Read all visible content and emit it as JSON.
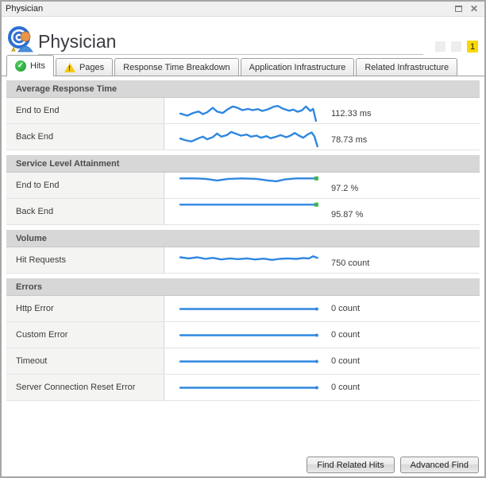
{
  "window": {
    "title": "Physician"
  },
  "titlebar": {
    "maximize_label": "maximize",
    "close_label": "close"
  },
  "header": {
    "title": "Physician",
    "badge_count": "1",
    "badge_color": "#f8d800",
    "status_boxes": 2
  },
  "tabs": [
    {
      "label": "Hits",
      "icon": "check-icon",
      "active": true
    },
    {
      "label": "Pages",
      "icon": "warning-icon",
      "active": false
    },
    {
      "label": "Response Time Breakdown",
      "icon": null,
      "active": false
    },
    {
      "label": "Application Infrastructure",
      "icon": null,
      "active": false
    },
    {
      "label": "Related Infrastructure",
      "icon": null,
      "active": false
    }
  ],
  "colors": {
    "spark_blue": "#2f87e0",
    "marker_green": "#3bb54a"
  },
  "sections": [
    {
      "title": "Average Response Time",
      "rows": [
        {
          "label": "End to End",
          "value": "112.33 ms",
          "value_pos": "low",
          "marker": null,
          "points": [
            [
              0,
              60
            ],
            [
              5,
              68
            ],
            [
              9,
              58
            ],
            [
              13,
              52
            ],
            [
              16,
              62
            ],
            [
              19,
              55
            ],
            [
              23,
              38
            ],
            [
              26,
              52
            ],
            [
              30,
              58
            ],
            [
              34,
              42
            ],
            [
              37,
              33
            ],
            [
              40,
              37
            ],
            [
              44,
              47
            ],
            [
              48,
              42
            ],
            [
              51,
              47
            ],
            [
              55,
              43
            ],
            [
              58,
              50
            ],
            [
              62,
              44
            ],
            [
              66,
              34
            ],
            [
              69,
              31
            ],
            [
              73,
              42
            ],
            [
              77,
              49
            ],
            [
              80,
              45
            ],
            [
              83,
              53
            ],
            [
              86,
              48
            ],
            [
              89,
              33
            ],
            [
              92,
              50
            ],
            [
              94,
              42
            ],
            [
              96,
              88
            ]
          ]
        },
        {
          "label": "Back End",
          "value": "78.73 ms",
          "value_pos": "low",
          "marker": null,
          "points": [
            [
              0,
              55
            ],
            [
              4,
              62
            ],
            [
              8,
              66
            ],
            [
              12,
              56
            ],
            [
              16,
              48
            ],
            [
              19,
              58
            ],
            [
              23,
              50
            ],
            [
              26,
              36
            ],
            [
              29,
              48
            ],
            [
              33,
              42
            ],
            [
              36,
              30
            ],
            [
              39,
              36
            ],
            [
              43,
              44
            ],
            [
              47,
              40
            ],
            [
              50,
              48
            ],
            [
              54,
              44
            ],
            [
              57,
              52
            ],
            [
              61,
              46
            ],
            [
              64,
              54
            ],
            [
              68,
              48
            ],
            [
              71,
              42
            ],
            [
              75,
              50
            ],
            [
              78,
              44
            ],
            [
              81,
              34
            ],
            [
              84,
              44
            ],
            [
              87,
              52
            ],
            [
              90,
              40
            ],
            [
              93,
              32
            ],
            [
              95,
              48
            ],
            [
              97,
              85
            ]
          ]
        }
      ]
    },
    {
      "title": "Service Level Attainment",
      "rows": [
        {
          "label": "End to End",
          "value": "97.2 %",
          "value_pos": "low",
          "marker": "green",
          "points": [
            [
              0,
              22
            ],
            [
              10,
              22
            ],
            [
              18,
              24
            ],
            [
              26,
              30
            ],
            [
              34,
              24
            ],
            [
              44,
              22
            ],
            [
              54,
              24
            ],
            [
              62,
              30
            ],
            [
              68,
              33
            ],
            [
              74,
              26
            ],
            [
              82,
              22
            ],
            [
              96,
              22
            ]
          ]
        },
        {
          "label": "Back End",
          "value": "95.87 %",
          "value_pos": "low",
          "marker": "green",
          "points": [
            [
              0,
              22
            ],
            [
              96,
              22
            ]
          ]
        }
      ]
    },
    {
      "title": "Volume",
      "rows": [
        {
          "label": "Hit Requests",
          "value": "750 count",
          "value_pos": "low",
          "marker": null,
          "points": [
            [
              0,
              38
            ],
            [
              6,
              42
            ],
            [
              12,
              38
            ],
            [
              18,
              44
            ],
            [
              23,
              40
            ],
            [
              29,
              46
            ],
            [
              35,
              42
            ],
            [
              41,
              45
            ],
            [
              47,
              42
            ],
            [
              53,
              46
            ],
            [
              59,
              43
            ],
            [
              65,
              48
            ],
            [
              70,
              44
            ],
            [
              76,
              42
            ],
            [
              82,
              44
            ],
            [
              87,
              41
            ],
            [
              91,
              42
            ],
            [
              94,
              34
            ],
            [
              97,
              40
            ]
          ]
        }
      ]
    },
    {
      "title": "Errors",
      "rows": [
        {
          "label": "Http Error",
          "value": "0 count",
          "value_pos": "mid",
          "marker": "dot",
          "points": [
            [
              0,
              50
            ],
            [
              96,
              50
            ]
          ]
        },
        {
          "label": "Custom Error",
          "value": "0 count",
          "value_pos": "mid",
          "marker": "dot",
          "points": [
            [
              0,
              50
            ],
            [
              96,
              50
            ]
          ]
        },
        {
          "label": "Timeout",
          "value": "0 count",
          "value_pos": "mid",
          "marker": "dot",
          "points": [
            [
              0,
              50
            ],
            [
              96,
              50
            ]
          ]
        },
        {
          "label": "Server Connection Reset Error",
          "value": "0 count",
          "value_pos": "mid",
          "marker": "dot",
          "points": [
            [
              0,
              50
            ],
            [
              96,
              50
            ]
          ]
        }
      ]
    }
  ],
  "footer": {
    "buttons": [
      {
        "label": "Find Related Hits"
      },
      {
        "label": "Advanced Find"
      }
    ]
  }
}
